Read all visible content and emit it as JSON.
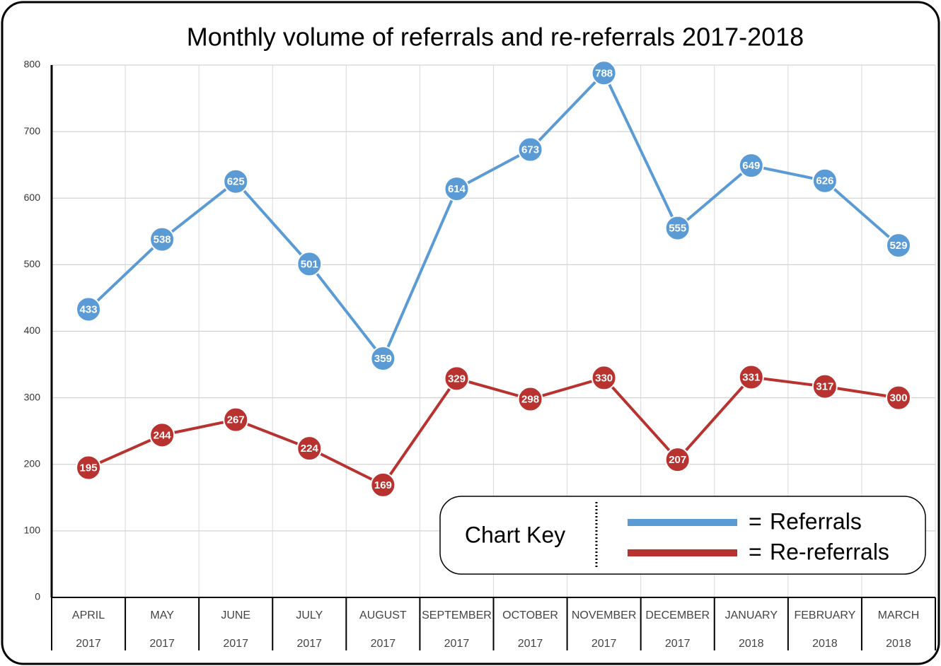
{
  "chart_data": {
    "type": "line",
    "title": "Monthly volume of referrals and re-referrals 2017-2018",
    "categories": [
      [
        "APRIL",
        "2017"
      ],
      [
        "MAY",
        "2017"
      ],
      [
        "JUNE",
        "2017"
      ],
      [
        "JULY",
        "2017"
      ],
      [
        "AUGUST",
        "2017"
      ],
      [
        "SEPTEMBER",
        "2017"
      ],
      [
        "OCTOBER",
        "2017"
      ],
      [
        "NOVEMBER",
        "2017"
      ],
      [
        "DECEMBER",
        "2017"
      ],
      [
        "JANUARY",
        "2018"
      ],
      [
        "FEBRUARY",
        "2018"
      ],
      [
        "MARCH",
        "2018"
      ]
    ],
    "series": [
      {
        "name": "Referrals",
        "color": "#5b9bd5",
        "values": [
          433,
          538,
          625,
          501,
          359,
          614,
          673,
          788,
          555,
          649,
          626,
          529
        ]
      },
      {
        "name": "Re-referrals",
        "color": "#b8322f",
        "values": [
          195,
          244,
          267,
          224,
          169,
          329,
          298,
          330,
          207,
          331,
          317,
          300
        ]
      }
    ],
    "ylim": [
      0,
      800
    ],
    "yticks": [
      0,
      100,
      200,
      300,
      400,
      500,
      600,
      700,
      800
    ],
    "grid": true,
    "legend_title": "Chart Key",
    "legend_separator": "=",
    "legend_position": "lower right"
  }
}
